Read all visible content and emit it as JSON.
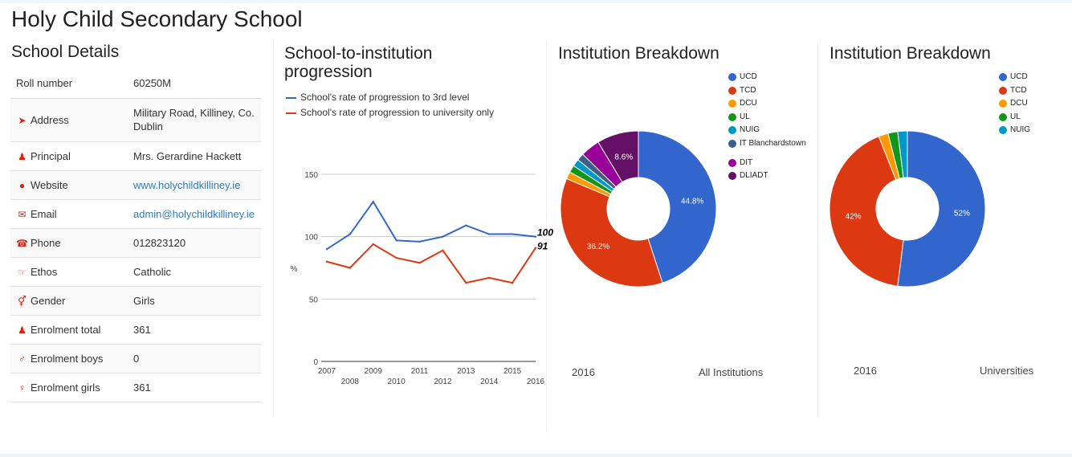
{
  "page": {
    "title": "Holy Child Secondary School"
  },
  "details": {
    "heading": "School Details",
    "rows": [
      {
        "icon": "",
        "key": "Roll number",
        "value": "60250M",
        "link": false
      },
      {
        "icon": "location-arrow-icon",
        "key": "Address",
        "value": "Military Road, Killiney, Co. Dublin",
        "link": false
      },
      {
        "icon": "user-icon",
        "key": "Principal",
        "value": "Mrs. Gerardine Hackett",
        "link": false
      },
      {
        "icon": "globe-icon",
        "key": "Website",
        "value": "www.holychildkilliney.ie",
        "link": true
      },
      {
        "icon": "envelope-icon",
        "key": "Email",
        "value": "admin@holychildkilliney.ie",
        "link": true
      },
      {
        "icon": "phone-icon",
        "key": "Phone",
        "value": "012823120",
        "link": false
      },
      {
        "icon": "hand-point-icon",
        "key": "Ethos",
        "value": "Catholic",
        "link": false
      },
      {
        "icon": "gender-icon",
        "key": "Gender",
        "value": "Girls",
        "link": false
      },
      {
        "icon": "users-icon",
        "key": "Enrolment total",
        "value": "361",
        "link": false
      },
      {
        "icon": "male-icon",
        "key": "Enrolment boys",
        "value": "0",
        "link": false
      },
      {
        "icon": "female-icon",
        "key": "Enrolment girls",
        "value": "361",
        "link": false
      }
    ]
  },
  "progression": {
    "heading_line1": "School-to-institution",
    "heading_line2": "progression",
    "unit_label": "%",
    "end_labels": [
      "100",
      "91"
    ],
    "colors": {
      "third_level": "#3366cc",
      "university": "#dc3912",
      "grid": "#cccccc"
    }
  },
  "breakdown_all": {
    "heading": "Institution Breakdown",
    "year": "2016",
    "caption": "All Institutions"
  },
  "breakdown_uni": {
    "heading": "Institution Breakdown",
    "year": "2016",
    "caption": "Universities"
  },
  "chart_data": [
    {
      "type": "line",
      "x": [
        2007,
        2008,
        2009,
        2010,
        2011,
        2012,
        2013,
        2014,
        2015,
        2016
      ],
      "series": [
        {
          "name": "School's rate of progression to 3rd level",
          "color": "#3366cc",
          "values": [
            90,
            102,
            128,
            97,
            96,
            100,
            109,
            102,
            102,
            100
          ]
        },
        {
          "name": "School's rate of progression to university only",
          "color": "#dc3912",
          "values": [
            80,
            75,
            94,
            83,
            79,
            89,
            63,
            67,
            63,
            91
          ]
        }
      ],
      "ylabel": "%",
      "ylim": [
        0,
        150
      ],
      "yticks": [
        0,
        50,
        100,
        150
      ],
      "grid": true,
      "legend": "top"
    },
    {
      "type": "pie",
      "donut": true,
      "labels": [
        "UCD",
        "TCD",
        "DCU",
        "UL",
        "NUIG",
        "IT Blanchardstown",
        "DIT",
        "DLIADT"
      ],
      "colors": [
        "#3366cc",
        "#dc3912",
        "#ff9900",
        "#109618",
        "#0099c6",
        "#3b5e8c",
        "#990099",
        "#651067"
      ],
      "values": [
        44.8,
        36.2,
        1.5,
        1.5,
        1.5,
        1.5,
        4.0,
        8.6
      ],
      "data_labels": [
        "44.8%",
        "36.2%",
        "",
        "",
        "",
        "",
        "",
        "8.6%"
      ],
      "year": "2016",
      "legend": "right"
    },
    {
      "type": "pie",
      "donut": true,
      "labels": [
        "UCD",
        "TCD",
        "DCU",
        "UL",
        "NUIG"
      ],
      "colors": [
        "#3366cc",
        "#dc3912",
        "#ff9900",
        "#109618",
        "#0099c6"
      ],
      "values": [
        52,
        42,
        2,
        2,
        2
      ],
      "data_labels": [
        "52%",
        "42%",
        "",
        "",
        ""
      ],
      "year": "2016",
      "legend": "right"
    }
  ]
}
